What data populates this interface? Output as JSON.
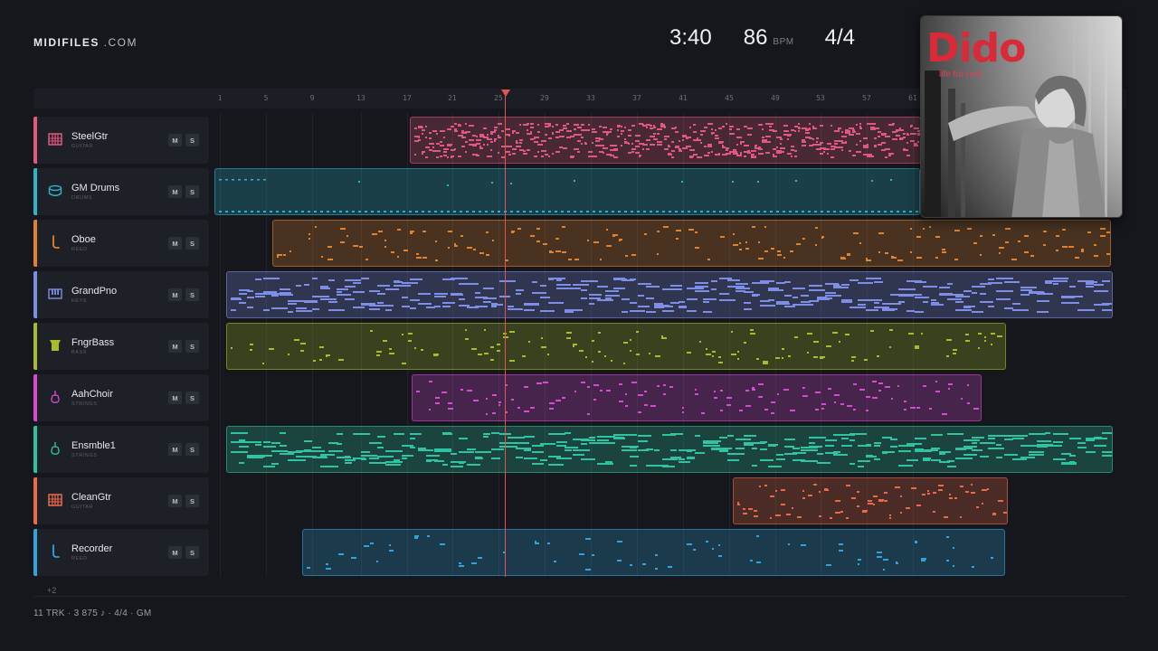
{
  "brand": {
    "bold": "MIDIFILES",
    "light": " .COM"
  },
  "stats": {
    "time": "3:40",
    "bpm": "86",
    "bpm_unit": "BPM",
    "time_signature": "4/4"
  },
  "ruler": [
    "1",
    "5",
    "9",
    "13",
    "17",
    "21",
    "25",
    "29",
    "33",
    "37",
    "41",
    "45",
    "49",
    "53",
    "57",
    "61"
  ],
  "tracks": [
    {
      "name": "SteelGtr",
      "category": "GUITAR",
      "color": "#e0577f",
      "icon": "guitar-icon",
      "mute": "M",
      "solo": "S"
    },
    {
      "name": "GM Drums",
      "category": "DRUMS",
      "color": "#2fb3c8",
      "icon": "drum-icon",
      "mute": "M",
      "solo": "S"
    },
    {
      "name": "Oboe",
      "category": "REED",
      "color": "#e0822e",
      "icon": "reed-icon",
      "mute": "M",
      "solo": "S"
    },
    {
      "name": "GrandPno",
      "category": "KEYS",
      "color": "#7e8de6",
      "icon": "piano-icon",
      "mute": "M",
      "solo": "S"
    },
    {
      "name": "FngrBass",
      "category": "BASS",
      "color": "#a8bb2a",
      "icon": "bass-icon",
      "mute": "M",
      "solo": "S"
    },
    {
      "name": "AahChoir",
      "category": "STRINGS",
      "color": "#d84ad4",
      "icon": "violin-icon",
      "mute": "M",
      "solo": "S"
    },
    {
      "name": "Ensmble1",
      "category": "STRINGS",
      "color": "#2ec4a2",
      "icon": "violin-icon",
      "mute": "M",
      "solo": "S"
    },
    {
      "name": "CleanGtr",
      "category": "GUITAR",
      "color": "#ec6a4a",
      "icon": "guitar-icon",
      "mute": "M",
      "solo": "S"
    },
    {
      "name": "Recorder",
      "category": "REED",
      "color": "#2fa3dd",
      "icon": "reed-icon",
      "mute": "M",
      "solo": "S"
    }
  ],
  "more_tracks": "+2",
  "footer": "11 TRK  ·  3 875 ♪  ·  4/4  ·  GM",
  "album": {
    "artist": "Dido",
    "title": "life for rent"
  }
}
